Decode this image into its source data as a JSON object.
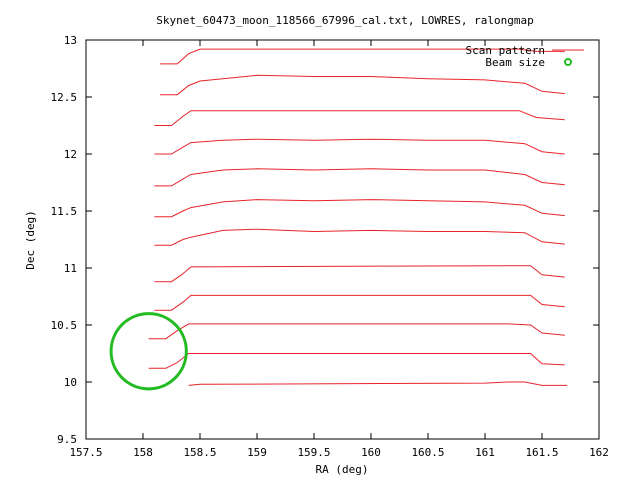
{
  "chart_data": {
    "type": "line",
    "title": "Skynet_60473_moon_118566_67996_cal.txt, LOWRES, ralongmap",
    "xlabel": "RA (deg)",
    "ylabel": "Dec (deg)",
    "xlim": [
      157.5,
      162
    ],
    "ylim": [
      9.5,
      13
    ],
    "xticks": [
      "157.5",
      "158",
      "158.5",
      "159",
      "159.5",
      "160",
      "160.5",
      "161",
      "161.5",
      "162"
    ],
    "yticks": [
      "9.5",
      "10",
      "10.5",
      "11",
      "11.5",
      "12",
      "12.5",
      "13"
    ],
    "grid": false,
    "legend_position": "top-right",
    "legend": [
      {
        "label": "Scan pattern",
        "color": "#e8242b",
        "style": "line"
      },
      {
        "label": "Beam size",
        "color": "#22bb22",
        "style": "circle"
      }
    ],
    "beam": {
      "ra": 158.05,
      "dec": 10.27,
      "radius_deg": 0.33,
      "color": "#22bb22"
    },
    "scan_color": "#e8242b",
    "series": [
      {
        "values": [
          [
            158.4,
            9.97
          ],
          [
            158.5,
            9.98
          ],
          [
            161.0,
            9.99
          ],
          [
            161.2,
            10.0
          ],
          [
            161.35,
            10.0
          ],
          [
            161.5,
            9.97
          ],
          [
            161.72,
            9.97
          ]
        ]
      },
      {
        "values": [
          [
            158.05,
            10.12
          ],
          [
            158.2,
            10.12
          ],
          [
            158.3,
            10.17
          ],
          [
            158.4,
            10.25
          ],
          [
            161.2,
            10.25
          ],
          [
            161.4,
            10.25
          ],
          [
            161.5,
            10.16
          ],
          [
            161.7,
            10.15
          ]
        ]
      },
      {
        "values": [
          [
            158.05,
            10.38
          ],
          [
            158.2,
            10.38
          ],
          [
            158.3,
            10.45
          ],
          [
            158.4,
            10.51
          ],
          [
            161.2,
            10.51
          ],
          [
            161.4,
            10.5
          ],
          [
            161.5,
            10.43
          ],
          [
            161.7,
            10.41
          ]
        ]
      },
      {
        "values": [
          [
            158.1,
            10.63
          ],
          [
            158.25,
            10.63
          ],
          [
            158.35,
            10.7
          ],
          [
            158.42,
            10.76
          ],
          [
            161.2,
            10.76
          ],
          [
            161.4,
            10.76
          ],
          [
            161.5,
            10.68
          ],
          [
            161.7,
            10.66
          ]
        ]
      },
      {
        "values": [
          [
            158.1,
            10.88
          ],
          [
            158.25,
            10.88
          ],
          [
            158.35,
            10.95
          ],
          [
            158.42,
            11.01
          ],
          [
            161.2,
            11.02
          ],
          [
            161.4,
            11.02
          ],
          [
            161.5,
            10.94
          ],
          [
            161.7,
            10.92
          ]
        ]
      },
      {
        "values": [
          [
            158.1,
            11.2
          ],
          [
            158.25,
            11.2
          ],
          [
            158.35,
            11.25
          ],
          [
            158.42,
            11.27
          ],
          [
            158.7,
            11.33
          ],
          [
            159.0,
            11.34
          ],
          [
            159.5,
            11.32
          ],
          [
            160.0,
            11.33
          ],
          [
            160.5,
            11.32
          ],
          [
            161.0,
            11.32
          ],
          [
            161.35,
            11.31
          ],
          [
            161.5,
            11.23
          ],
          [
            161.7,
            11.21
          ]
        ]
      },
      {
        "values": [
          [
            158.1,
            11.45
          ],
          [
            158.25,
            11.45
          ],
          [
            158.35,
            11.5
          ],
          [
            158.42,
            11.53
          ],
          [
            158.7,
            11.58
          ],
          [
            159.0,
            11.6
          ],
          [
            159.5,
            11.59
          ],
          [
            160.0,
            11.6
          ],
          [
            160.5,
            11.59
          ],
          [
            161.0,
            11.58
          ],
          [
            161.35,
            11.55
          ],
          [
            161.5,
            11.48
          ],
          [
            161.7,
            11.46
          ]
        ]
      },
      {
        "values": [
          [
            158.1,
            11.72
          ],
          [
            158.25,
            11.72
          ],
          [
            158.35,
            11.78
          ],
          [
            158.42,
            11.82
          ],
          [
            158.7,
            11.86
          ],
          [
            159.0,
            11.87
          ],
          [
            159.5,
            11.86
          ],
          [
            160.0,
            11.87
          ],
          [
            160.5,
            11.86
          ],
          [
            161.0,
            11.86
          ],
          [
            161.35,
            11.82
          ],
          [
            161.5,
            11.75
          ],
          [
            161.7,
            11.73
          ]
        ]
      },
      {
        "values": [
          [
            158.1,
            12.0
          ],
          [
            158.25,
            12.0
          ],
          [
            158.35,
            12.06
          ],
          [
            158.42,
            12.1
          ],
          [
            158.7,
            12.12
          ],
          [
            159.0,
            12.13
          ],
          [
            159.5,
            12.12
          ],
          [
            160.0,
            12.13
          ],
          [
            160.5,
            12.12
          ],
          [
            161.0,
            12.12
          ],
          [
            161.35,
            12.09
          ],
          [
            161.5,
            12.02
          ],
          [
            161.7,
            12.0
          ]
        ]
      },
      {
        "values": [
          [
            158.1,
            12.25
          ],
          [
            158.25,
            12.25
          ],
          [
            158.35,
            12.33
          ],
          [
            158.42,
            12.38
          ],
          [
            161.3,
            12.38
          ],
          [
            161.45,
            12.32
          ],
          [
            161.7,
            12.3
          ]
        ]
      },
      {
        "values": [
          [
            158.15,
            12.52
          ],
          [
            158.3,
            12.52
          ],
          [
            158.4,
            12.6
          ],
          [
            158.5,
            12.64
          ],
          [
            158.8,
            12.67
          ],
          [
            159.0,
            12.69
          ],
          [
            159.5,
            12.68
          ],
          [
            160.0,
            12.68
          ],
          [
            160.5,
            12.66
          ],
          [
            161.0,
            12.65
          ],
          [
            161.35,
            12.62
          ],
          [
            161.5,
            12.55
          ],
          [
            161.7,
            12.53
          ]
        ]
      },
      {
        "values": [
          [
            158.15,
            12.79
          ],
          [
            158.3,
            12.79
          ],
          [
            158.4,
            12.88
          ],
          [
            158.5,
            12.92
          ],
          [
            161.3,
            12.92
          ],
          [
            161.45,
            12.9
          ],
          [
            161.7,
            12.9
          ]
        ]
      }
    ]
  }
}
